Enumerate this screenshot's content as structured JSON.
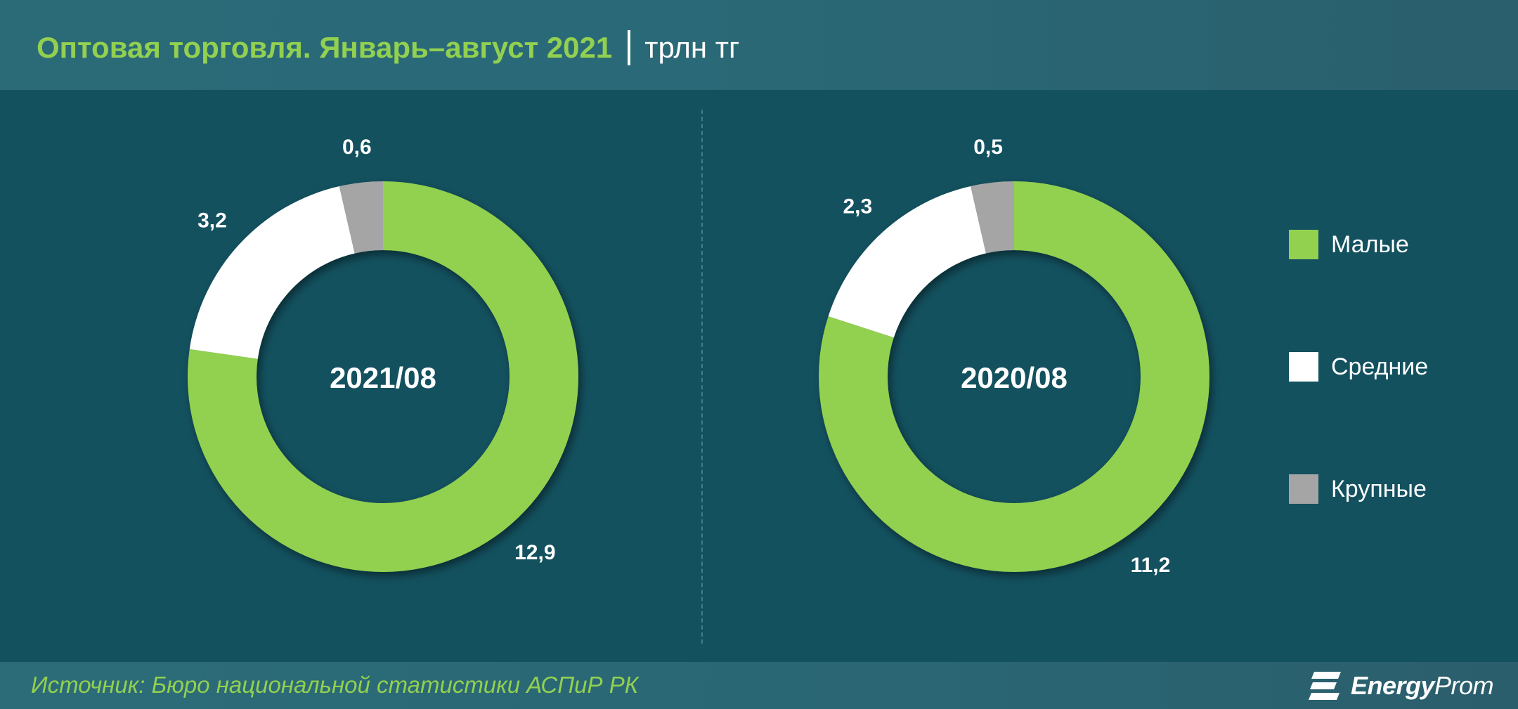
{
  "header": {
    "title": "Оптовая торговля. Январь–август 2021",
    "unit": "трлн тг"
  },
  "chart_data": [
    {
      "type": "pie",
      "center_label": "2021/08",
      "categories": [
        "Малые",
        "Средние",
        "Крупные"
      ],
      "values": [
        12.9,
        3.2,
        0.6
      ],
      "value_labels": [
        "12,9",
        "3,2",
        "0,6"
      ],
      "colors": [
        "#92d050",
        "#ffffff",
        "#a5a5a5"
      ]
    },
    {
      "type": "pie",
      "center_label": "2020/08",
      "categories": [
        "Малые",
        "Средние",
        "Крупные"
      ],
      "values": [
        11.2,
        2.3,
        0.5
      ],
      "value_labels": [
        "11,2",
        "2,3",
        "0,5"
      ],
      "colors": [
        "#92d050",
        "#ffffff",
        "#a5a5a5"
      ]
    }
  ],
  "legend": {
    "items": [
      {
        "label": "Малые",
        "color": "#92d050"
      },
      {
        "label": "Средние",
        "color": "#ffffff"
      },
      {
        "label": "Крупные",
        "color": "#a5a5a5"
      }
    ]
  },
  "footer": {
    "source": "Источник: Бюро национальной статистики АСПиР РК",
    "logo_bold": "Energy",
    "logo_light": "Prom"
  }
}
